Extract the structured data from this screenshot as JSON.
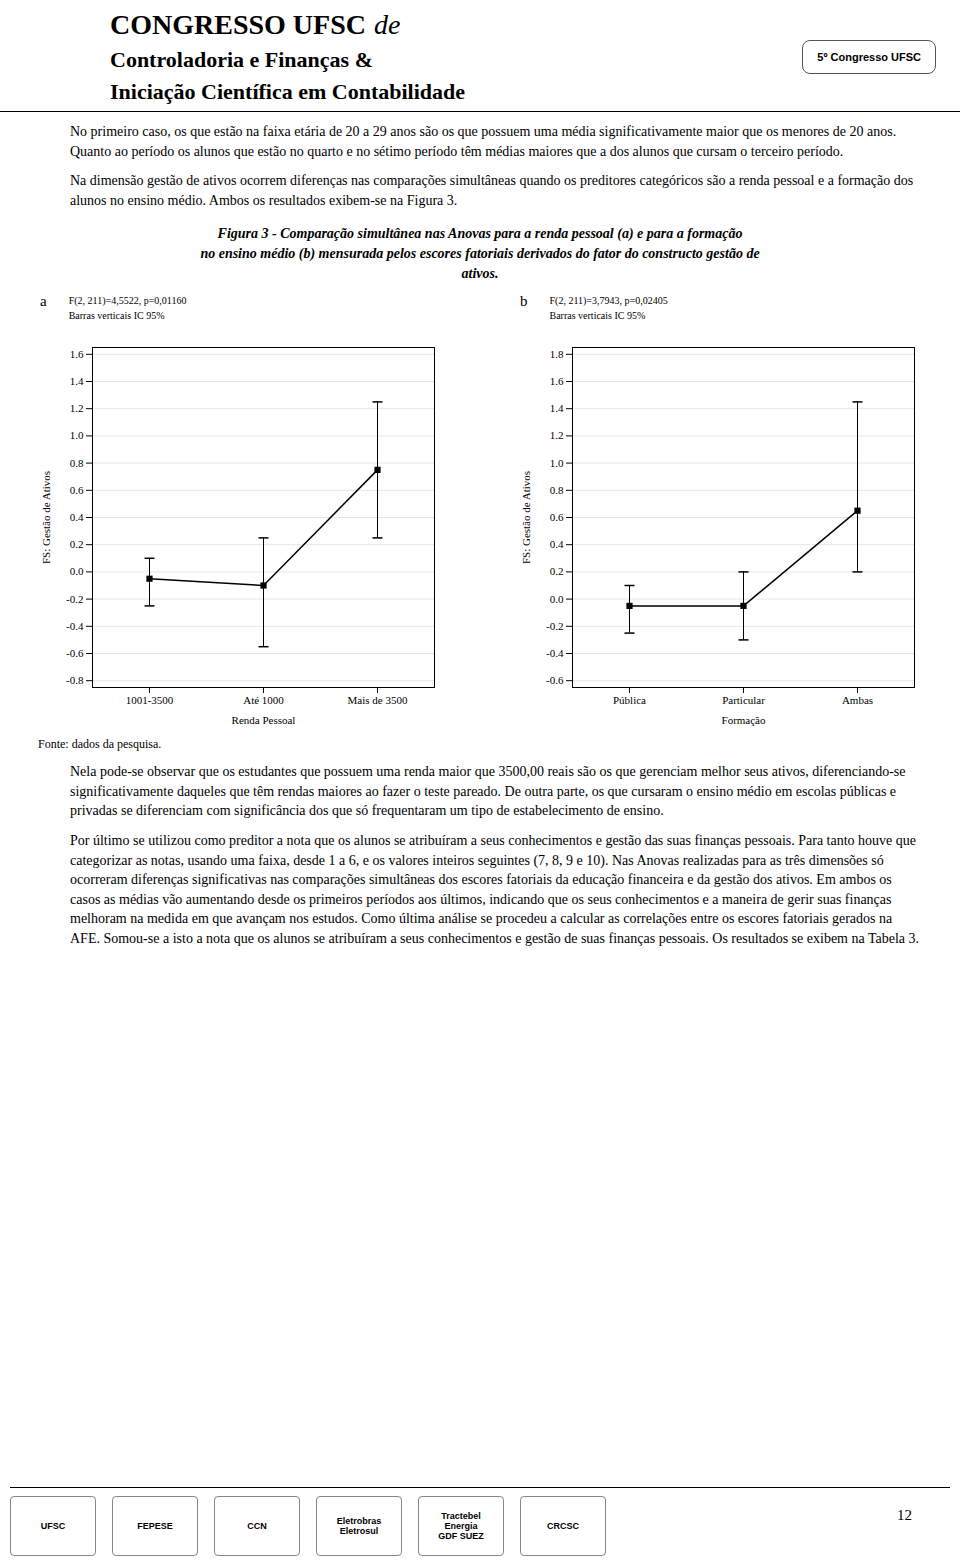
{
  "header": [
    "CONGRESSO UFSC",
    "de",
    "Controladoria e Finanças &",
    "Iniciação Científica em Contabilidade"
  ],
  "badge": "5º Congresso UFSC",
  "paragraphs_before": [
    "No primeiro caso, os que estão na faixa etária de 20 a 29 anos são os que possuem uma média significativamente maior que os menores de 20 anos. Quanto ao período os alunos que estão no quarto e no sétimo período têm médias maiores que a dos alunos que cursam o terceiro período.",
    "Na dimensão gestão de ativos ocorrem diferenças nas comparações simultâneas quando os preditores categóricos são a renda pessoal e a formação dos alunos no ensino médio. Ambos os resultados exibem-se na Figura 3."
  ],
  "caption": [
    "Figura 3 - Comparação simultânea nas Anovas para a renda pessoal (a) e para a formação",
    "no ensino médio (b) mensurada pelos escores fatoriais derivados do fator do constructo gestão de",
    "ativos."
  ],
  "chart_data": [
    {
      "type": "line",
      "title": "a",
      "annotations": [
        "F(2, 211)=4,5522, p=0,01160",
        "Barras verticais IC 95%"
      ],
      "categories": [
        "1001-3500",
        "Até 1000",
        "Mais de 3500"
      ],
      "values": [
        -0.05,
        -0.1,
        0.75
      ],
      "error_low": [
        0.2,
        0.45,
        0.5
      ],
      "error_high": [
        0.15,
        0.35,
        0.5
      ],
      "xlabel": "Renda Pessoal",
      "ylabel": "FS: Gestão de Ativos",
      "ylim": [
        -0.85,
        1.65
      ],
      "yticks": [
        -0.8,
        -0.6,
        -0.4,
        -0.2,
        {
          "value": 0,
          "label": "0.0"
        },
        0.2,
        0.4,
        0.6,
        0.8,
        {
          "value": 1,
          "label": "1.0"
        },
        1.2,
        1.4,
        1.6
      ],
      "color": "black",
      "marker": "square",
      "line_style": "solid",
      "grid": true
    },
    {
      "type": "line",
      "title": "b",
      "annotations": [
        "F(2, 211)=3,7943, p=0,02405",
        "Barras verticais IC 95%"
      ],
      "categories": [
        "Pública",
        "Particular",
        "Ambas"
      ],
      "values": [
        -0.05,
        -0.05,
        0.65
      ],
      "error_low": [
        0.2,
        0.25,
        0.45
      ],
      "error_high": [
        0.15,
        0.25,
        0.8
      ],
      "xlabel": "Formação",
      "ylabel": "FS: Gestão de Ativos",
      "ylim": [
        -0.65,
        1.85
      ],
      "yticks": [
        -0.6,
        -0.4,
        -0.2,
        {
          "value": 0,
          "label": "0.0"
        },
        0.2,
        0.4,
        0.6,
        0.8,
        {
          "value": 1,
          "label": "1.0"
        },
        1.2,
        1.4,
        1.6,
        1.8
      ],
      "color": "black",
      "marker": "square",
      "line_style": "solid",
      "grid": true
    }
  ],
  "source": "Fonte: dados da pesquisa.",
  "paragraphs_after": [
    "Nela pode-se observar que os estudantes que possuem uma renda maior que 3500,00 reais são os que gerenciam melhor seus ativos, diferenciando-se significativamente daqueles que têm rendas maiores ao fazer o teste pareado. De outra parte, os que cursaram o ensino médio em escolas públicas e privadas se diferenciam com significância dos que só frequentaram um tipo de estabelecimento de ensino.",
    "Por último se utilizou como preditor a nota que os alunos se atribuíram a seus conhecimentos e gestão das suas finanças pessoais. Para tanto houve que categorizar as notas, usando uma faixa, desde 1 a 6, e os valores inteiros seguintes (7, 8, 9 e 10). Nas Anovas realizadas para as três dimensões só ocorreram diferenças significativas nas comparações simultâneas dos escores fatoriais da educação financeira e da gestão dos ativos. Em ambos os casos as médias vão aumentando desde os primeiros períodos aos últimos, indicando que os seus conhecimentos e a maneira de gerir suas finanças melhoram na medida em que avançam nos estudos. Como última análise se procedeu a calcular as correlações entre os escores fatoriais gerados na AFE. Somou-se a isto a nota que os alunos se atribuíram a seus conhecimentos e gestão de suas finanças pessoais. Os resultados se exibem na Tabela 3."
  ],
  "footer": [
    "UFSC",
    "FEPESE",
    "CCN",
    "Eletrobras\nEletrosul",
    "Tractebel\nEnergia\nGDF SUEZ",
    "CRCSC"
  ],
  "page_number": "12"
}
